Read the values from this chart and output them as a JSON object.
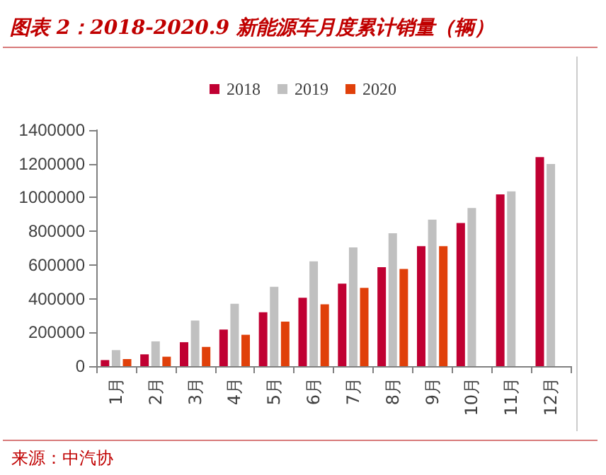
{
  "chart_data": {
    "type": "bar",
    "title": "图表 2：2018-2020.9 新能源车月度累计销量（辆）",
    "categories": [
      "1月",
      "2月",
      "3月",
      "4月",
      "5月",
      "6月",
      "7月",
      "8月",
      "9月",
      "10月",
      "11月",
      "12月"
    ],
    "series": [
      {
        "name": "2018",
        "color": "#c00032",
        "values": [
          36000,
          70000,
          142000,
          217000,
          320000,
          406000,
          489000,
          587000,
          712000,
          849000,
          1019000,
          1240000
        ]
      },
      {
        "name": "2019",
        "color": "#c0c0c0",
        "values": [
          95000,
          147000,
          270000,
          370000,
          470000,
          621000,
          704000,
          788000,
          869000,
          938000,
          1036000,
          1199000
        ]
      },
      {
        "name": "2020",
        "color": "#e0400a",
        "values": [
          42000,
          56000,
          114000,
          186000,
          264000,
          367000,
          464000,
          576000,
          712000,
          null,
          null,
          null
        ]
      }
    ],
    "ylim": [
      0,
      1400000
    ],
    "yticks": [
      0,
      200000,
      400000,
      600000,
      800000,
      1000000,
      1200000,
      1400000
    ],
    "grid": false,
    "legend": "top",
    "annotations": [
      "来源：中汽协"
    ]
  }
}
